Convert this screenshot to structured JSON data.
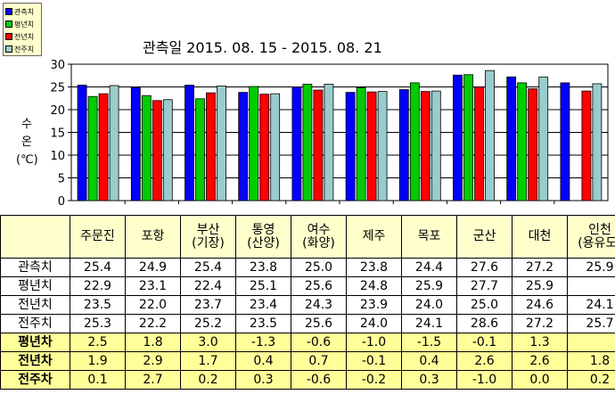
{
  "chart_data": {
    "type": "bar",
    "title": "관측일 2015. 08. 15 - 2015. 08. 21",
    "ylabel": "수\n온\n(℃)",
    "ylim": [
      0,
      30
    ],
    "yticks": [
      0,
      5,
      10,
      15,
      20,
      25,
      30
    ],
    "grid": true,
    "legend_position": "top-left",
    "categories": [
      "주문진",
      "포항",
      "부산",
      "통영",
      "여수",
      "제주",
      "목포",
      "군산",
      "대천",
      "인천"
    ],
    "series": [
      {
        "name": "관측치",
        "color": "#0000ff",
        "values": [
          25.4,
          24.9,
          25.4,
          23.8,
          25.0,
          23.8,
          24.4,
          27.6,
          27.2,
          25.9
        ]
      },
      {
        "name": "평년치",
        "color": "#00cc00",
        "values": [
          22.9,
          23.1,
          22.4,
          25.1,
          25.6,
          24.8,
          25.9,
          27.7,
          25.9,
          null
        ]
      },
      {
        "name": "전년치",
        "color": "#ff0000",
        "values": [
          23.5,
          22.0,
          23.7,
          23.4,
          24.3,
          23.9,
          24.0,
          25.0,
          24.6,
          24.1
        ]
      },
      {
        "name": "전주치",
        "color": "#99cccc",
        "values": [
          25.3,
          22.2,
          25.2,
          23.5,
          25.6,
          24.0,
          24.1,
          28.6,
          27.2,
          25.7
        ]
      }
    ]
  },
  "table": {
    "headers": [
      [
        "주문진"
      ],
      [
        "포항"
      ],
      [
        "부산",
        "(기장)"
      ],
      [
        "통영",
        "(산양)"
      ],
      [
        "여수",
        "(화양)"
      ],
      [
        "제주"
      ],
      [
        "목포"
      ],
      [
        "군산"
      ],
      [
        "대천"
      ],
      [
        "인천",
        "(용유도)"
      ]
    ],
    "rows": [
      {
        "label": "관측치",
        "highlight": false,
        "values": [
          "25.4",
          "24.9",
          "25.4",
          "23.8",
          "25.0",
          "23.8",
          "24.4",
          "27.6",
          "27.2",
          "25.9"
        ]
      },
      {
        "label": "평년치",
        "highlight": false,
        "values": [
          "22.9",
          "23.1",
          "22.4",
          "25.1",
          "25.6",
          "24.8",
          "25.9",
          "27.7",
          "25.9",
          ""
        ]
      },
      {
        "label": "전년치",
        "highlight": false,
        "values": [
          "23.5",
          "22.0",
          "23.7",
          "23.4",
          "24.3",
          "23.9",
          "24.0",
          "25.0",
          "24.6",
          "24.1"
        ]
      },
      {
        "label": "전주치",
        "highlight": false,
        "values": [
          "25.3",
          "22.2",
          "25.2",
          "23.5",
          "25.6",
          "24.0",
          "24.1",
          "28.6",
          "27.2",
          "25.7"
        ]
      },
      {
        "label": "평년차",
        "highlight": true,
        "values": [
          "2.5",
          "1.8",
          "3.0",
          "-1.3",
          "-0.6",
          "-1.0",
          "-1.5",
          "-0.1",
          "1.3",
          ""
        ]
      },
      {
        "label": "전년차",
        "highlight": true,
        "values": [
          "1.9",
          "2.9",
          "1.7",
          "0.4",
          "0.7",
          "-0.1",
          "0.4",
          "2.6",
          "2.6",
          "1.8"
        ]
      },
      {
        "label": "전주차",
        "highlight": true,
        "values": [
          "0.1",
          "2.7",
          "0.2",
          "0.3",
          "-0.6",
          "-0.2",
          "0.3",
          "-1.0",
          "0.0",
          "0.2"
        ]
      }
    ]
  }
}
